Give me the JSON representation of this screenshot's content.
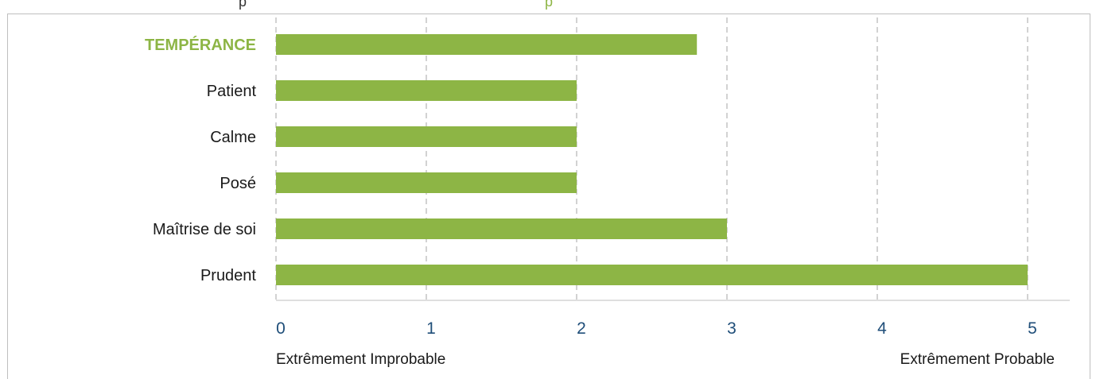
{
  "header_fragment": {
    "text": "p",
    "accent": "p"
  },
  "colors": {
    "bar": "#8db545",
    "highlight_label": "#8db545",
    "tick": "#1f4e79",
    "grid": "#a6a6a6"
  },
  "chart_data": {
    "type": "bar",
    "orientation": "horizontal",
    "categories": [
      "TEMPÉRANCE",
      "Patient",
      "Calme",
      "Posé",
      "Maîtrise de soi",
      "Prudent"
    ],
    "highlighted_category": "TEMPÉRANCE",
    "values": [
      2.8,
      2,
      2,
      2,
      3,
      5
    ],
    "xlim": [
      0,
      5
    ],
    "xticks": [
      "0",
      "1",
      "2",
      "3",
      "4",
      "5"
    ],
    "x_end_labels": {
      "left": "Extrêmement Improbable",
      "right": "Extrêmement Probable"
    },
    "grid": "vertical dashed",
    "legend": "none"
  }
}
